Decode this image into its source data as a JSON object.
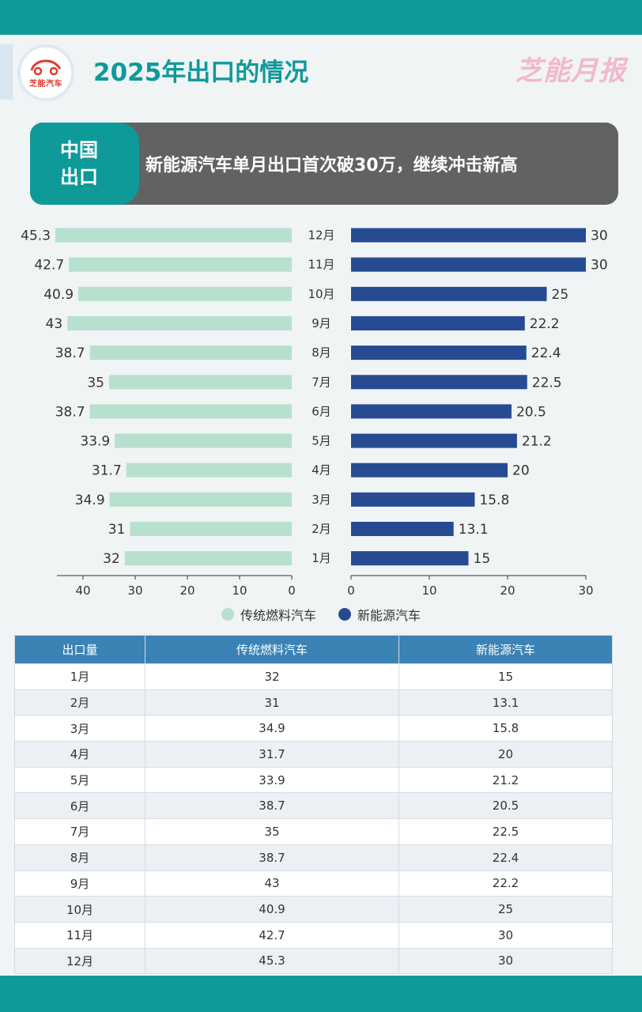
{
  "header": {
    "title": "2025年出口的情况",
    "logo_text": "芝能汽车",
    "brand_mark": "芝能月报"
  },
  "banner": {
    "tag_line1": "中国",
    "tag_line2": "出口",
    "text": "新能源汽车单月出口首次破30万，继续冲击新高"
  },
  "colors": {
    "teal": "#0f9a9a",
    "ice": "#b7e0cf",
    "nev": "#264b92",
    "table_header": "#3b82b5"
  },
  "chart_data": {
    "type": "bar",
    "orientation": "horizontal-butterfly",
    "categories": [
      "1月",
      "2月",
      "3月",
      "4月",
      "5月",
      "6月",
      "7月",
      "8月",
      "9月",
      "10月",
      "11月",
      "12月"
    ],
    "series": [
      {
        "name": "传统燃料汽车",
        "values": [
          32,
          31,
          34.9,
          31.7,
          33.9,
          38.7,
          35,
          38.7,
          43,
          40.9,
          42.7,
          45.3
        ],
        "color": "#b7e0cf"
      },
      {
        "name": "新能源汽车",
        "values": [
          15,
          13.1,
          15.8,
          20,
          21.2,
          20.5,
          22.5,
          22.4,
          22.2,
          25,
          30,
          30
        ],
        "color": "#264b92"
      }
    ],
    "left_axis": {
      "ticks": [
        40,
        30,
        20,
        10,
        0
      ],
      "range": [
        0,
        45.3
      ]
    },
    "right_axis": {
      "ticks": [
        0,
        10,
        20,
        30
      ],
      "range": [
        0,
        30
      ]
    },
    "legend_position": "bottom-center"
  },
  "table": {
    "headers": [
      "出口量",
      "传统燃料汽车",
      "新能源汽车"
    ],
    "rows": [
      [
        "1月",
        "32",
        "15"
      ],
      [
        "2月",
        "31",
        "13.1"
      ],
      [
        "3月",
        "34.9",
        "15.8"
      ],
      [
        "4月",
        "31.7",
        "20"
      ],
      [
        "5月",
        "33.9",
        "21.2"
      ],
      [
        "6月",
        "38.7",
        "20.5"
      ],
      [
        "7月",
        "35",
        "22.5"
      ],
      [
        "8月",
        "38.7",
        "22.4"
      ],
      [
        "9月",
        "43",
        "22.2"
      ],
      [
        "10月",
        "40.9",
        "25"
      ],
      [
        "11月",
        "42.7",
        "30"
      ],
      [
        "12月",
        "45.3",
        "30"
      ]
    ]
  }
}
